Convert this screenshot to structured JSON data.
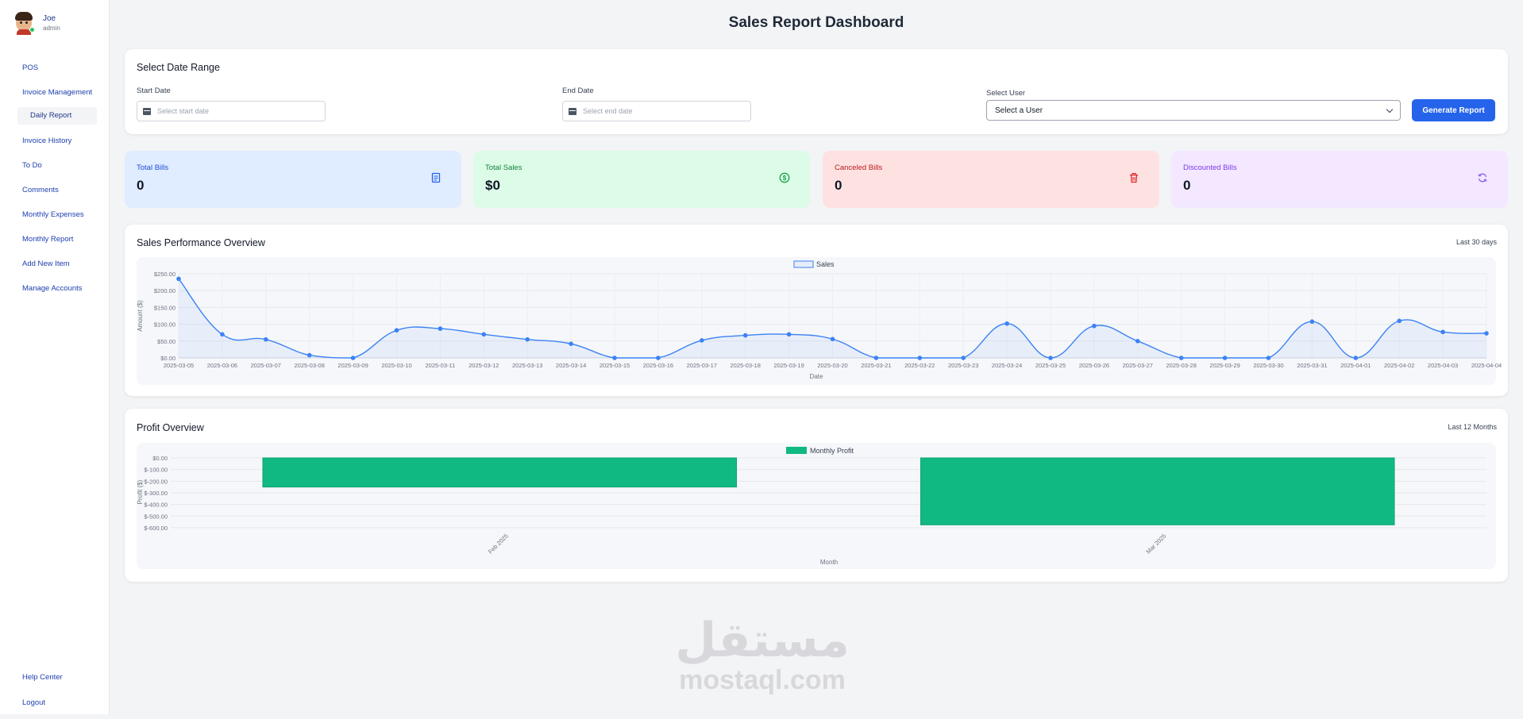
{
  "sidebar": {
    "user": {
      "name": "Joe",
      "role": "admin"
    },
    "items": [
      {
        "label": "POS"
      },
      {
        "label": "Invoice Management"
      },
      {
        "label": "Daily Report"
      },
      {
        "label": "Invoice History"
      },
      {
        "label": "To Do"
      },
      {
        "label": "Comments"
      },
      {
        "label": "Monthly Expenses"
      },
      {
        "label": "Monthly Report"
      },
      {
        "label": "Add New Item"
      },
      {
        "label": "Manage Accounts"
      }
    ],
    "bottom": [
      {
        "label": "Help Center"
      },
      {
        "label": "Logout"
      }
    ]
  },
  "page": {
    "title": "Sales Report Dashboard"
  },
  "filters": {
    "title": "Select Date Range",
    "start_label": "Start Date",
    "start_placeholder": "Select start date",
    "end_label": "End Date",
    "end_placeholder": "Select end date",
    "user_label": "Select User",
    "user_value": "Select a User",
    "generate_label": "Generate Report"
  },
  "stats": [
    {
      "label": "Total Bills",
      "value": "0",
      "icon": "receipt-icon"
    },
    {
      "label": "Total Sales",
      "value": "$0",
      "icon": "dollar-circle-icon"
    },
    {
      "label": "Canceled Bills",
      "value": "0",
      "icon": "trash-icon"
    },
    {
      "label": "Discounted Bills",
      "value": "0",
      "icon": "refresh-icon"
    }
  ],
  "sales_section": {
    "title": "Sales Performance Overview",
    "note": "Last 30 days"
  },
  "profit_section": {
    "title": "Profit Overview",
    "note": "Last 12 Months"
  },
  "watermark": {
    "arabic": "مستقل",
    "latin": "mostaql.com"
  },
  "chart_data": [
    {
      "type": "line",
      "title": "",
      "xlabel": "Date",
      "ylabel": "Amount ($)",
      "ylim": [
        0,
        250
      ],
      "yticks": [
        "$0.00",
        "$50.00",
        "$100.00",
        "$150.00",
        "$200.00",
        "$250.00"
      ],
      "legend": "top-center",
      "grid": true,
      "color": "#3b82f6",
      "categories": [
        "2025-03-05",
        "2025-03-06",
        "2025-03-07",
        "2025-03-08",
        "2025-03-09",
        "2025-03-10",
        "2025-03-11",
        "2025-03-12",
        "2025-03-13",
        "2025-03-14",
        "2025-03-15",
        "2025-03-16",
        "2025-03-17",
        "2025-03-18",
        "2025-03-19",
        "2025-03-20",
        "2025-03-21",
        "2025-03-22",
        "2025-03-23",
        "2025-03-24",
        "2025-03-25",
        "2025-03-26",
        "2025-03-27",
        "2025-03-28",
        "2025-03-29",
        "2025-03-30",
        "2025-03-31",
        "2025-04-01",
        "2025-04-02",
        "2025-04-03",
        "2025-04-04"
      ],
      "series": [
        {
          "name": "Sales",
          "values": [
            235,
            70,
            55,
            8,
            0,
            82,
            87,
            70,
            55,
            42,
            0,
            0,
            52,
            67,
            70,
            56,
            0,
            0,
            0,
            102,
            0,
            95,
            50,
            0,
            0,
            0,
            108,
            0,
            110,
            77,
            73
          ]
        }
      ]
    },
    {
      "type": "bar",
      "title": "",
      "xlabel": "Month",
      "ylabel": "Profit ($)",
      "ylim": [
        -600,
        0
      ],
      "yticks": [
        "$0.00",
        "$-100.00",
        "$-200.00",
        "$-300.00",
        "$-400.00",
        "$-500.00",
        "$-600.00"
      ],
      "legend": "top-center",
      "grid": true,
      "color": "#10b981",
      "categories": [
        "Feb 2025",
        "Mar 2025"
      ],
      "series": [
        {
          "name": "Monthly Profit",
          "values": [
            -250,
            -575
          ]
        }
      ]
    }
  ]
}
